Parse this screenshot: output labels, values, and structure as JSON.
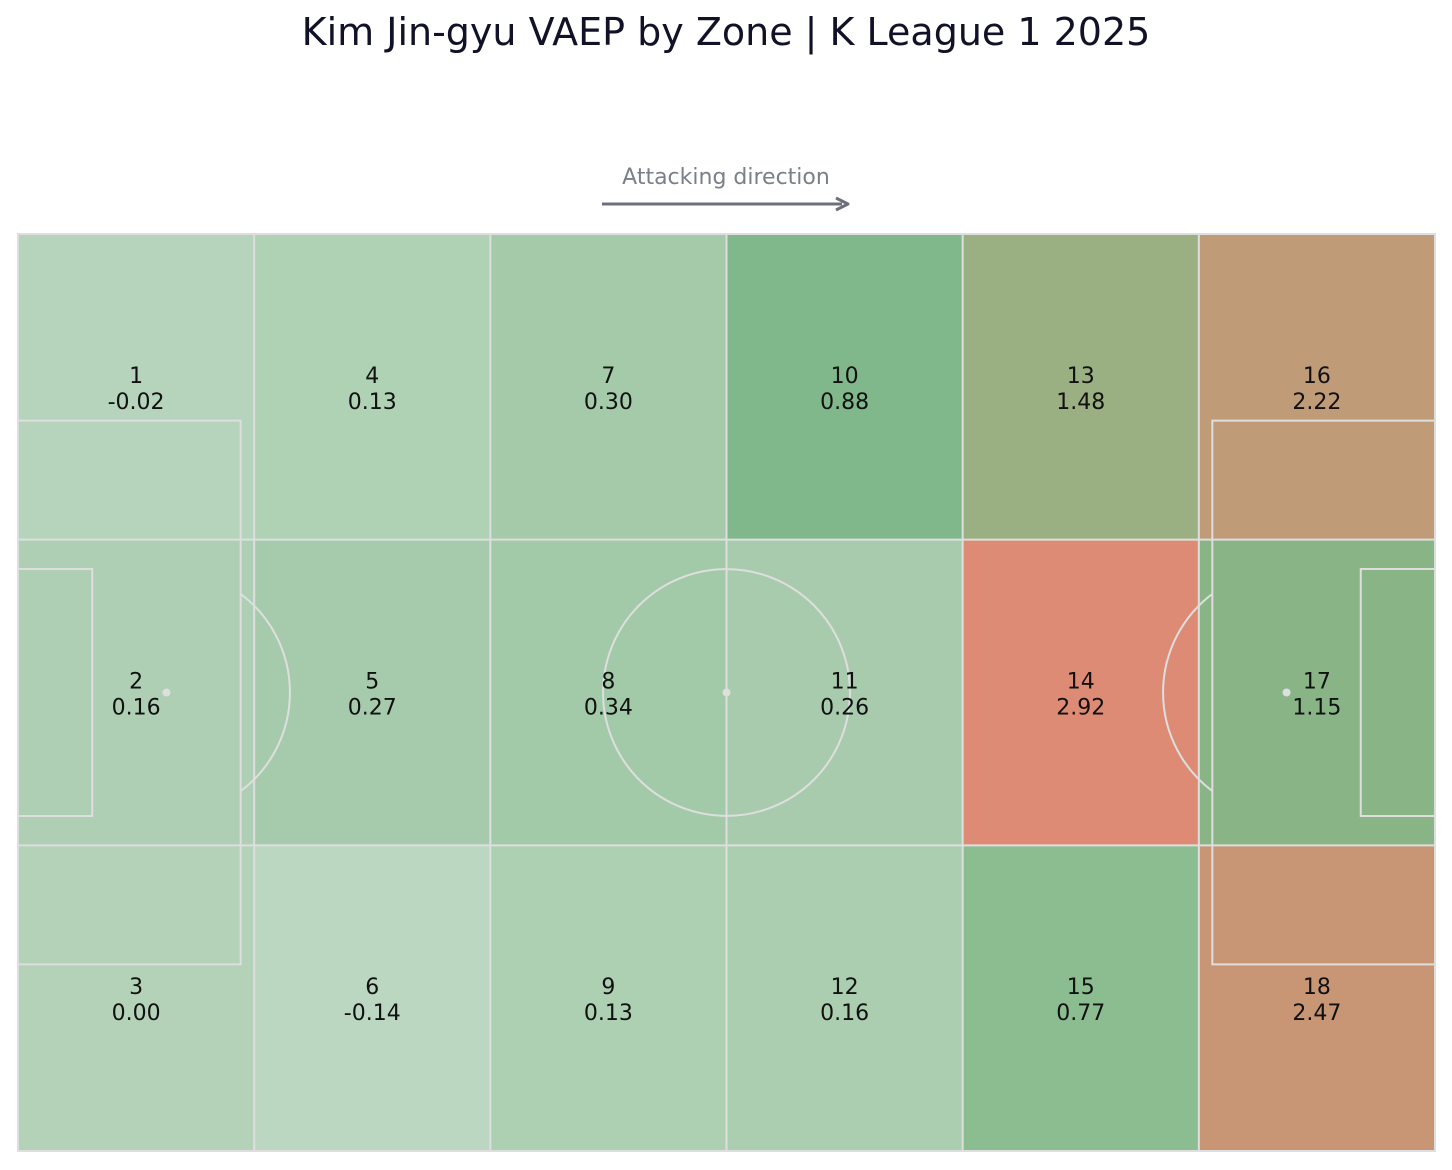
{
  "title": "Kim Jin-gyu VAEP by Zone | K League 1 2025",
  "direction_label": "Attacking direction",
  "colors": {
    "line": "#dedede",
    "arrow": "#6b707a",
    "text": "#111111"
  },
  "chart_data": {
    "type": "heatmap",
    "title": "Kim Jin-gyu VAEP by Zone | K League 1 2025",
    "columns": 6,
    "rows": 3,
    "zones": [
      {
        "zone": "1",
        "value": "-0.02",
        "color": "#b5d4bb"
      },
      {
        "zone": "2",
        "value": "0.16",
        "color": "#aecfb3"
      },
      {
        "zone": "3",
        "value": "0.00",
        "color": "#b3d2b8"
      },
      {
        "zone": "4",
        "value": "0.13",
        "color": "#afd1b4"
      },
      {
        "zone": "5",
        "value": "0.27",
        "color": "#a6cbac"
      },
      {
        "zone": "6",
        "value": "-0.14",
        "color": "#bcd7c1"
      },
      {
        "zone": "7",
        "value": "0.30",
        "color": "#a4caaa"
      },
      {
        "zone": "8",
        "value": "0.34",
        "color": "#a2c9a8"
      },
      {
        "zone": "9",
        "value": "0.13",
        "color": "#adcfb2"
      },
      {
        "zone": "10",
        "value": "0.88",
        "color": "#80b88b"
      },
      {
        "zone": "11",
        "value": "0.26",
        "color": "#a8cbad"
      },
      {
        "zone": "12",
        "value": "0.16",
        "color": "#abcdb0"
      },
      {
        "zone": "13",
        "value": "1.48",
        "color": "#9aaf82"
      },
      {
        "zone": "14",
        "value": "2.92",
        "color": "#dd8b74"
      },
      {
        "zone": "15",
        "value": "0.77",
        "color": "#8bbd91"
      },
      {
        "zone": "16",
        "value": "2.22",
        "color": "#bf9b78"
      },
      {
        "zone": "17",
        "value": "1.15",
        "color": "#88b486"
      },
      {
        "zone": "18",
        "value": "2.47",
        "color": "#c89675"
      }
    ]
  }
}
